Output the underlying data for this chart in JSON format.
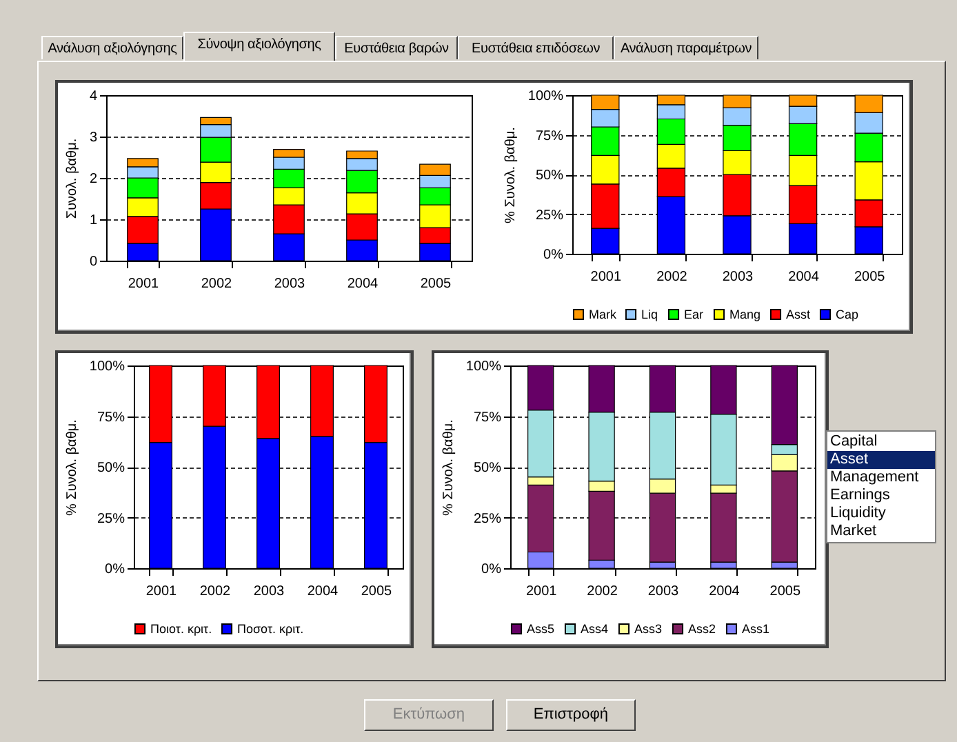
{
  "chart_data": [
    {
      "type": "bar",
      "stacked": true,
      "ylabel": "Συνολ. βαθμ.",
      "categories": [
        "2001",
        "2002",
        "2003",
        "2004",
        "2005"
      ],
      "ylim": [
        0,
        4
      ],
      "yticks": [
        0,
        1,
        2,
        3,
        4
      ],
      "grid": "y",
      "series": [
        {
          "color": "#0000ff",
          "values": [
            0.42,
            1.25,
            0.65,
            0.5,
            0.42
          ]
        },
        {
          "color": "#ff0000",
          "values": [
            0.65,
            0.64,
            0.7,
            0.63,
            0.38
          ]
        },
        {
          "color": "#ffff00",
          "values": [
            0.45,
            0.49,
            0.41,
            0.51,
            0.55
          ]
        },
        {
          "color": "#00ff00",
          "values": [
            0.48,
            0.6,
            0.45,
            0.54,
            0.41
          ]
        },
        {
          "color": "#99ccff",
          "values": [
            0.27,
            0.31,
            0.29,
            0.29,
            0.3
          ]
        },
        {
          "color": "#ff9900",
          "values": [
            0.2,
            0.17,
            0.19,
            0.18,
            0.27
          ]
        }
      ]
    },
    {
      "type": "bar",
      "stacked": true,
      "ylabel": "% Συνολ. βαθμ.",
      "categories": [
        "2001",
        "2002",
        "2003",
        "2004",
        "2005"
      ],
      "ylim": [
        0,
        100
      ],
      "yticks": [
        {
          "value": 0,
          "label": "0%"
        },
        {
          "value": 25,
          "label": "25%"
        },
        {
          "value": 50,
          "label": "50%"
        },
        {
          "value": 75,
          "label": "75%"
        },
        {
          "value": 100,
          "label": "100%"
        }
      ],
      "grid": "y",
      "legend": "bottom",
      "series": [
        {
          "name": "Cap",
          "color": "#0000ff",
          "values": [
            16,
            36,
            24,
            19,
            17
          ]
        },
        {
          "name": "Asst",
          "color": "#ff0000",
          "values": [
            28,
            18,
            26,
            24,
            17
          ]
        },
        {
          "name": "Mang",
          "color": "#ffff00",
          "values": [
            18,
            15,
            15,
            19,
            24
          ]
        },
        {
          "name": "Ear",
          "color": "#00ff00",
          "values": [
            18,
            16,
            16,
            20,
            18
          ]
        },
        {
          "name": "Liq",
          "color": "#99ccff",
          "values": [
            11,
            9,
            11,
            11,
            13
          ]
        },
        {
          "name": "Mark",
          "color": "#ff9900",
          "values": [
            9,
            6,
            8,
            7,
            11
          ]
        }
      ]
    },
    {
      "type": "bar",
      "stacked": true,
      "ylabel": "% Συνολ. βαθμ.",
      "categories": [
        "2001",
        "2002",
        "2003",
        "2004",
        "2005"
      ],
      "ylim": [
        0,
        100
      ],
      "yticks": [
        {
          "value": 0,
          "label": "0%"
        },
        {
          "value": 25,
          "label": "25%"
        },
        {
          "value": 50,
          "label": "50%"
        },
        {
          "value": 75,
          "label": "75%"
        },
        {
          "value": 100,
          "label": "100%"
        }
      ],
      "grid": "y",
      "legend": "bottom",
      "series": [
        {
          "name": "Ποσοτ. κριτ.",
          "color": "#0000ff",
          "values": [
            62,
            70,
            64,
            65,
            62
          ]
        },
        {
          "name": "Ποιοτ. κριτ.",
          "color": "#ff0000",
          "values": [
            38,
            30,
            36,
            35,
            38
          ]
        }
      ]
    },
    {
      "type": "bar",
      "stacked": true,
      "ylabel": "% Συνολ. βαθμ.",
      "categories": [
        "2001",
        "2002",
        "2003",
        "2004",
        "2005"
      ],
      "ylim": [
        0,
        100
      ],
      "yticks": [
        {
          "value": 0,
          "label": "0%"
        },
        {
          "value": 25,
          "label": "25%"
        },
        {
          "value": 50,
          "label": "50%"
        },
        {
          "value": 75,
          "label": "75%"
        },
        {
          "value": 100,
          "label": "100%"
        }
      ],
      "grid": "y",
      "legend": "bottom",
      "series": [
        {
          "name": "Ass1",
          "color": "#8080ff",
          "values": [
            8,
            4,
            3,
            3,
            3
          ]
        },
        {
          "name": "Ass2",
          "color": "#802060",
          "values": [
            33,
            34,
            34,
            34,
            45
          ]
        },
        {
          "name": "Ass3",
          "color": "#ffff99",
          "values": [
            4,
            5,
            7,
            4,
            8
          ]
        },
        {
          "name": "Ass4",
          "color": "#a0e0e0",
          "values": [
            33,
            34,
            33,
            35,
            5
          ]
        },
        {
          "name": "Ass5",
          "color": "#660066",
          "values": [
            22,
            23,
            23,
            24,
            39
          ]
        }
      ]
    },
    {
      "type": "other",
      "annotations": [
        "Ανάλυση αξιολόγησης",
        "Σύνοψη αξιολόγησης",
        "Ευστάθεια βαρών",
        "Ευστάθεια επιδόσεων",
        "Ανάλυση παραμέτρων",
        "Capital",
        "Asset",
        "Management",
        "Earnings",
        "Liquidity",
        "Market",
        "Εκτύπωση",
        "Επιστροφή"
      ]
    }
  ]
}
